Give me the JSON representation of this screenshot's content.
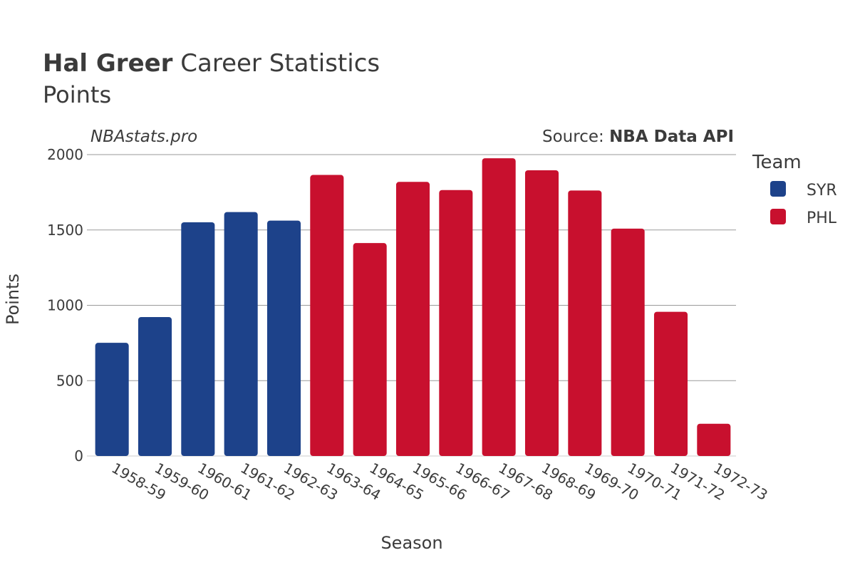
{
  "header": {
    "title_bold": "Hal Greer",
    "title_rest": " Career Statistics",
    "subtitle": "Points",
    "watermark": "NBAstats.pro",
    "source_prefix": "Source: ",
    "source_name": "NBA Data API"
  },
  "legend": {
    "title": "Team",
    "items": [
      {
        "label": "SYR",
        "color": "#1d428a"
      },
      {
        "label": "PHL",
        "color": "#c8102e"
      }
    ]
  },
  "chart_data": {
    "type": "bar",
    "title": "Hal Greer Career Statistics",
    "subtitle": "Points",
    "xlabel": "Season",
    "ylabel": "Points",
    "ylim": [
      0,
      2000
    ],
    "yticks": [
      0,
      500,
      1000,
      1500,
      2000
    ],
    "grid": true,
    "legend_position": "right",
    "categories": [
      "1958-59",
      "1959-60",
      "1960-61",
      "1961-62",
      "1962-63",
      "1963-64",
      "1964-65",
      "1965-66",
      "1966-67",
      "1967-68",
      "1968-69",
      "1969-70",
      "1970-71",
      "1971-72",
      "1972-73"
    ],
    "values": [
      751,
      922,
      1551,
      1619,
      1562,
      1865,
      1413,
      1819,
      1765,
      1976,
      1896,
      1762,
      1509,
      957,
      214
    ],
    "teams": [
      "SYR",
      "SYR",
      "SYR",
      "SYR",
      "SYR",
      "PHL",
      "PHL",
      "PHL",
      "PHL",
      "PHL",
      "PHL",
      "PHL",
      "PHL",
      "PHL",
      "PHL"
    ],
    "series": [
      {
        "name": "SYR",
        "color": "#1d428a"
      },
      {
        "name": "PHL",
        "color": "#c8102e"
      }
    ]
  }
}
